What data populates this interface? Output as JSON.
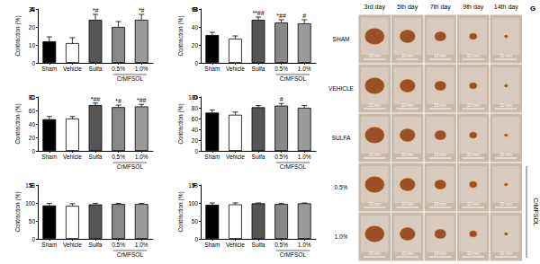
{
  "chart_data": [
    {
      "type": "bar",
      "title": "A",
      "y_label": "Contraction (%)",
      "group_label": "CrMFSOL",
      "categories": [
        "Sham",
        "Vehicle",
        "Sulfa",
        "0.5%",
        "1.0%"
      ],
      "values": [
        12,
        11,
        24,
        20,
        24
      ],
      "errors": [
        2.5,
        3,
        3,
        3,
        3
      ],
      "annotations": [
        null,
        null,
        "*#",
        null,
        "*#"
      ],
      "colors": [
        "#000000",
        "#ffffff",
        "#555555",
        "#888888",
        "#9a9a9a"
      ],
      "ylim": [
        0,
        30
      ],
      "yticks": [
        0,
        10,
        20,
        30
      ],
      "grid": false
    },
    {
      "type": "bar",
      "title": "B",
      "y_label": "Contraction (%)",
      "group_label": "CrMFSOL",
      "categories": [
        "Sham",
        "Vehicle",
        "Sulfa",
        "0.5%",
        "1.0%"
      ],
      "values": [
        31,
        27,
        48,
        45,
        44
      ],
      "errors": [
        3,
        3,
        3,
        3,
        4
      ],
      "annotations": [
        null,
        null,
        "**##",
        "*##",
        "#"
      ],
      "colors": [
        "#000000",
        "#ffffff",
        "#555555",
        "#888888",
        "#9a9a9a"
      ],
      "ylim": [
        0,
        60
      ],
      "yticks": [
        0,
        20,
        40,
        60
      ],
      "grid": false
    },
    {
      "type": "bar",
      "title": "C",
      "y_label": "Contraction (%)",
      "group_label": "CrMFSOL",
      "categories": [
        "Sham",
        "Vehicle",
        "Sulfa",
        "0.5%",
        "1.0%"
      ],
      "values": [
        47,
        48,
        68,
        65,
        66
      ],
      "errors": [
        4,
        3,
        3,
        3,
        3
      ],
      "annotations": [
        null,
        null,
        "*##",
        "*#",
        "*##"
      ],
      "colors": [
        "#000000",
        "#ffffff",
        "#555555",
        "#888888",
        "#9a9a9a"
      ],
      "ylim": [
        0,
        80
      ],
      "yticks": [
        0,
        20,
        40,
        60,
        80
      ],
      "grid": false
    },
    {
      "type": "bar",
      "title": "D",
      "y_label": "Contraction (%)",
      "group_label": "CrMFSOL",
      "categories": [
        "Sham",
        "Vehicle",
        "Sulfa",
        "0.5%",
        "1.0%"
      ],
      "values": [
        71,
        67,
        81,
        84,
        80
      ],
      "errors": [
        5,
        5,
        3,
        4,
        4
      ],
      "annotations": [
        null,
        null,
        null,
        "#",
        null
      ],
      "colors": [
        "#000000",
        "#ffffff",
        "#555555",
        "#888888",
        "#9a9a9a"
      ],
      "ylim": [
        0,
        100
      ],
      "yticks": [
        0,
        20,
        40,
        60,
        80,
        100
      ],
      "grid": false
    },
    {
      "type": "bar",
      "title": "E",
      "y_label": "Contraction (%)",
      "group_label": "CrMFSOL",
      "categories": [
        "Sham",
        "Vehicle",
        "Sulfa",
        "0.5%",
        "1.0%"
      ],
      "values": [
        93,
        92,
        96,
        97,
        97
      ],
      "errors": [
        6,
        6,
        3,
        2,
        2
      ],
      "annotations": [
        null,
        null,
        null,
        null,
        null
      ],
      "colors": [
        "#000000",
        "#ffffff",
        "#555555",
        "#888888",
        "#9a9a9a"
      ],
      "ylim": [
        0,
        150
      ],
      "yticks": [
        0,
        50,
        100,
        150
      ],
      "grid": false
    },
    {
      "type": "bar",
      "title": "F",
      "y_label": "Contraction (%)",
      "group_label": "CrMFSOL",
      "categories": [
        "Sham",
        "Vehicle",
        "Sulfa",
        "0.5%",
        "1.0%"
      ],
      "values": [
        95,
        96,
        99,
        97,
        99
      ],
      "errors": [
        5,
        4,
        1,
        2,
        1
      ],
      "annotations": [
        null,
        null,
        null,
        null,
        null
      ],
      "colors": [
        "#000000",
        "#ffffff",
        "#555555",
        "#888888",
        "#9a9a9a"
      ],
      "ylim": [
        0,
        150
      ],
      "yticks": [
        0,
        50,
        100,
        150
      ],
      "grid": false
    }
  ],
  "photo_panel": {
    "label": "G",
    "columns": [
      "3rd day",
      "5th day",
      "7th day",
      "9th day",
      "14th day"
    ],
    "rows": [
      "SHAM",
      "VEHICLE",
      "SULFA",
      "0.5%",
      "1.0%"
    ],
    "row_group": "CrMFSOL",
    "scale_bar": "10 mm"
  }
}
